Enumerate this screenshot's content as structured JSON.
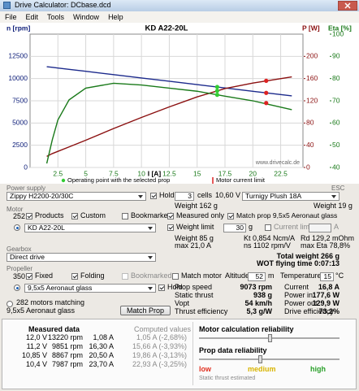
{
  "window": {
    "title": "Drive Calculator: DCbase.dcd"
  },
  "menu": [
    "File",
    "Edit",
    "Tools",
    "Window",
    "Help"
  ],
  "chart_data": {
    "type": "line",
    "title": "KD A22-20L",
    "x_label": "I [A]",
    "y_label": "n [rpm]",
    "y2_label": "P [W]",
    "y3_label": "Eta [%]",
    "x": [
      1.5,
      2,
      2.5,
      3.5,
      5,
      7.5,
      10,
      12.5,
      15,
      17.5,
      20,
      23.5
    ],
    "series": [
      {
        "color": "#1c2a8c",
        "axis": "y",
        "values": [
          11340,
          11270,
          11190,
          11040,
          10820,
          10440,
          10070,
          9700,
          9320,
          8950,
          8570,
          8050
        ]
      },
      {
        "color": "#8b1010",
        "axis": "y2",
        "values": [
          20,
          25,
          29,
          37,
          49,
          70,
          90,
          109,
          127,
          142,
          152,
          163
        ]
      },
      {
        "color": "#1a7a1a",
        "axis": "y3",
        "values": [
          41.8,
          52.5,
          61.4,
          70.4,
          75.7,
          77.9,
          77.1,
          75.7,
          74.3,
          72.1,
          70,
          66
        ]
      }
    ],
    "markers": [
      {
        "name": "Operating point with the selected prop",
        "color": "#33cc33",
        "x": 16.8,
        "values": [
          9060,
          138,
          72.7
        ]
      },
      {
        "name": "Motor current limit",
        "color": "#dd2222",
        "x": 21.2,
        "values": [
          8390,
          156,
          69
        ]
      }
    ],
    "watermark": "www.drivecalc.de",
    "xlim": [
      0,
      24.5
    ],
    "xticks": [
      2.5,
      5,
      7.5,
      10,
      12.5,
      15,
      17.5,
      20,
      22.5
    ],
    "ylim": [
      0,
      15000
    ],
    "yticks": [
      0,
      2500,
      5000,
      7500,
      10000,
      12500
    ],
    "y2lim": [
      0,
      240
    ],
    "y2ticks": [
      0,
      40,
      80,
      120,
      160,
      200
    ],
    "y3lim": [
      40,
      100
    ],
    "y3ticks": [
      40,
      50,
      60,
      70,
      80,
      90,
      100
    ],
    "grid": true
  },
  "power_supply": {
    "label": "Power supply",
    "esc_label": "ESC",
    "battery": "Zippy H2200-20/30C",
    "hold": {
      "label": "Hold",
      "checked": true
    },
    "cells": "3",
    "cells_label": "cells",
    "voltage": "10,60 V",
    "battery_weight": "Weight 162 g",
    "esc": "Turnigy Plush 18A",
    "esc_weight": "Weight 19 g"
  },
  "motor": {
    "label": "Motor",
    "count": "252",
    "products": {
      "label": "Products",
      "checked": true
    },
    "custom": {
      "label": "Custom",
      "checked": true
    },
    "bookmarked": {
      "label": "Bookmarked",
      "checked": false
    },
    "measured_only": {
      "label": "Measured only",
      "checked": true
    },
    "match_prop": {
      "label": "Match prop 9,5x5 Aeronaut glass",
      "checked": true
    },
    "selected": "KD A22-20L",
    "radio": true,
    "weight_limit": {
      "label": "Weight limit",
      "checked": true
    },
    "weight_limit_value": "30",
    "weight_unit": "g",
    "current_limit": {
      "label": "Current limit",
      "checked": false
    },
    "current_unit": "A",
    "specs": [
      [
        "Weight 85 g",
        "Kt 0,854 Ncm/A",
        "Rd 129,2 mOhm"
      ],
      [
        "max 21,0 A",
        "ns 1102 rpm/V",
        "max Eta 78,8%"
      ]
    ]
  },
  "gearbox": {
    "label": "Gearbox",
    "selected": "Direct drive"
  },
  "totals": {
    "total_weight": "Total weight 266 g",
    "flying_time": "WOT flying time 0:07:13"
  },
  "propeller": {
    "label": "Propeller",
    "count": "350",
    "fixed": {
      "label": "Fixed",
      "checked": true
    },
    "folding": {
      "label": "Folding",
      "checked": true
    },
    "bookmarked": {
      "label": "Bookmarked",
      "checked": false
    },
    "match_motor": {
      "label": "Match motor",
      "checked": false
    },
    "altitude_label": "Altitude",
    "altitude": "52",
    "altitude_unit": "m",
    "temperature_label": "Temperature",
    "temperature": "15",
    "temperature_unit": "°C",
    "selected": "9,5x5 Aeronaut glass",
    "radio": true,
    "hold": {
      "label": "Hold",
      "checked": true
    },
    "matching": "282 motors matching",
    "matching_radio": false,
    "matching_prop": "9,5x5 Aeronaut glass",
    "match_button": "Match Prop"
  },
  "results": {
    "left": [
      [
        "Prop speed",
        "9073 rpm"
      ],
      [
        "Static thrust",
        "938 g"
      ],
      [
        "Vopt",
        "54 km/h"
      ],
      [
        "Thrust efficiency",
        "5,3 g/W"
      ]
    ],
    "right": [
      [
        "Current",
        "16,8 A"
      ],
      [
        "Power in",
        "177,6 W"
      ],
      [
        "Power out",
        "129,9 W"
      ],
      [
        "Drive efficiency",
        "73,2%"
      ]
    ]
  },
  "measured": {
    "title": "Measured data",
    "computed_title": "Computed values",
    "rows": [
      [
        "12,0 V",
        "13220 rpm",
        "1,08 A",
        "1,05 A (-2,68%)"
      ],
      [
        "11,2 V",
        "9851 rpm",
        "16,30 A",
        "15,66 A (-3,93%)"
      ],
      [
        "10,85 V",
        "8867 rpm",
        "20,50 A",
        "19,86 A (-3,13%)"
      ],
      [
        "10,4 V",
        "7987 rpm",
        "23,70 A",
        "22,93 A (-3,25%)"
      ]
    ]
  },
  "reliability": {
    "motor": "Motor calculation reliability",
    "prop": "Prop data reliability",
    "low": "low",
    "medium": "medium",
    "high": "high",
    "note": "Static thrust estimated"
  }
}
